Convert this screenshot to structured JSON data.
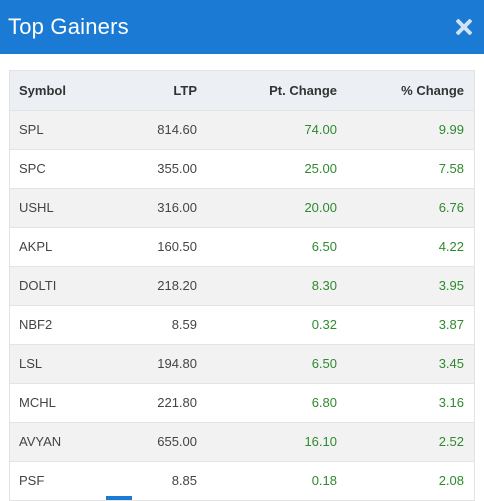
{
  "dialog": {
    "title": "Top Gainers",
    "colors": {
      "header": "#1a7ad4",
      "positive": "#2e8a2e"
    },
    "close_icon": "close-icon"
  },
  "table": {
    "columns": [
      "Symbol",
      "LTP",
      "Pt. Change",
      "% Change"
    ],
    "rows": [
      [
        "SPL",
        "814.60",
        "74.00",
        "9.99"
      ],
      [
        "SPC",
        "355.00",
        "25.00",
        "7.58"
      ],
      [
        "USHL",
        "316.00",
        "20.00",
        "6.76"
      ],
      [
        "AKPL",
        "160.50",
        "6.50",
        "4.22"
      ],
      [
        "DOLTI",
        "218.20",
        "8.30",
        "3.95"
      ],
      [
        "NBF2",
        "8.59",
        "0.32",
        "3.87"
      ],
      [
        "LSL",
        "194.80",
        "6.50",
        "3.45"
      ],
      [
        "MCHL",
        "221.80",
        "6.80",
        "3.16"
      ],
      [
        "AVYAN",
        "655.00",
        "16.10",
        "2.52"
      ],
      [
        "PSF",
        "8.85",
        "0.18",
        "2.08"
      ]
    ]
  }
}
